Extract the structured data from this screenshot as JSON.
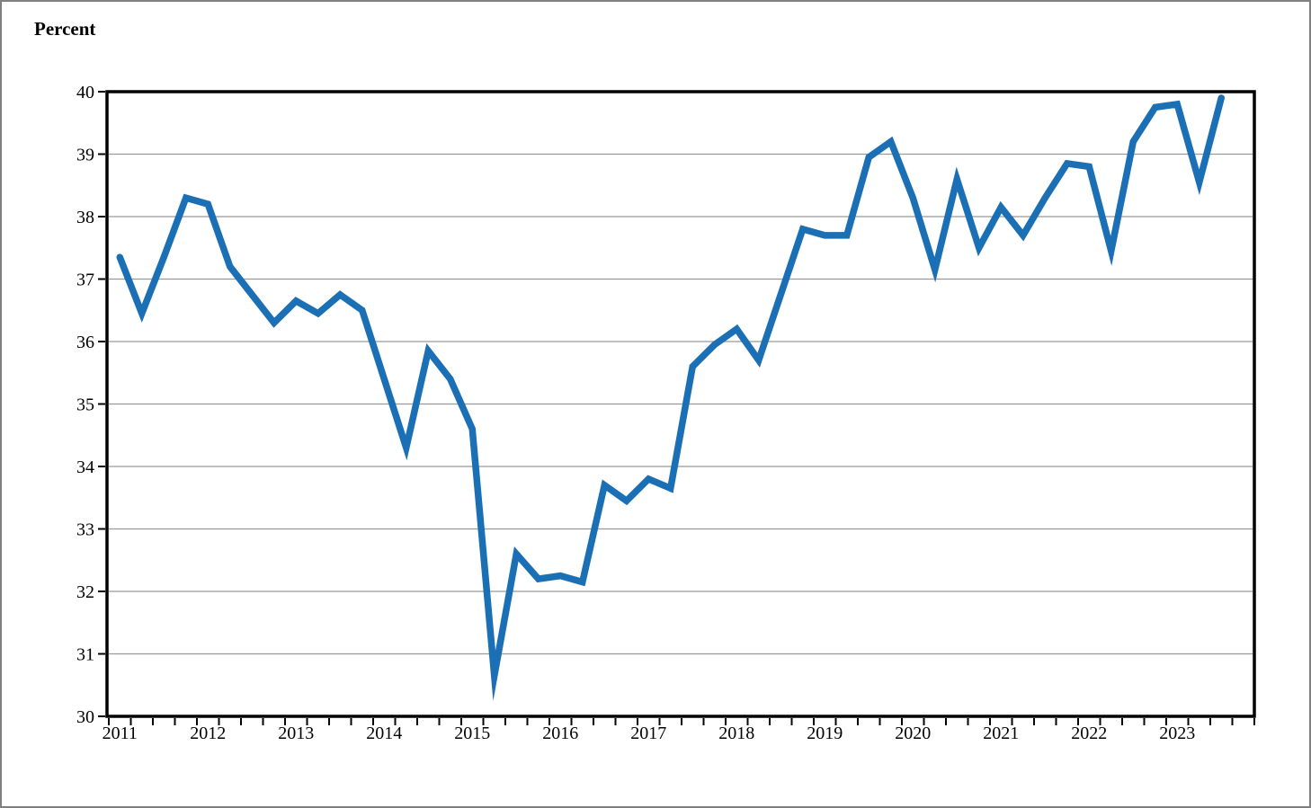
{
  "page": {
    "ylabel_header": "Percent"
  },
  "chart_data": {
    "type": "line",
    "title": "",
    "ylabel": "Percent",
    "xlabel": "",
    "x_frequency": "quarterly",
    "x_range": "2011 Q1 to 2023 Q3",
    "ylim": [
      30,
      40
    ],
    "grid": "horizontal gridlines at each integer value",
    "legend": "none",
    "line_color": "#1b6fb5",
    "frame_color": "#000000",
    "gridline_color": "#999999",
    "y_tick_labels": [
      "30",
      "31",
      "32",
      "33",
      "34",
      "35",
      "36",
      "37",
      "38",
      "39",
      "40"
    ],
    "x_tick_labels": [
      "2011",
      "2012",
      "2013",
      "2014",
      "2015",
      "2016",
      "2017",
      "2018",
      "2019",
      "2020",
      "2021",
      "2022",
      "2023"
    ],
    "series": [
      {
        "name": "Percent",
        "x": [
          "2011 Q1",
          "2011 Q2",
          "2011 Q3",
          "2011 Q4",
          "2012 Q1",
          "2012 Q2",
          "2012 Q3",
          "2012 Q4",
          "2013 Q1",
          "2013 Q2",
          "2013 Q3",
          "2013 Q4",
          "2014 Q1",
          "2014 Q2",
          "2014 Q3",
          "2014 Q4",
          "2015 Q1",
          "2015 Q2",
          "2015 Q3",
          "2015 Q4",
          "2016 Q1",
          "2016 Q2",
          "2016 Q3",
          "2016 Q4",
          "2017 Q1",
          "2017 Q2",
          "2017 Q3",
          "2017 Q4",
          "2018 Q1",
          "2018 Q2",
          "2018 Q3",
          "2018 Q4",
          "2019 Q1",
          "2019 Q2",
          "2019 Q3",
          "2019 Q4",
          "2020 Q1",
          "2020 Q2",
          "2020 Q3",
          "2020 Q4",
          "2021 Q1",
          "2021 Q2",
          "2021 Q3",
          "2021 Q4",
          "2022 Q1",
          "2022 Q2",
          "2022 Q3",
          "2022 Q4",
          "2023 Q1",
          "2023 Q2",
          "2023 Q3"
        ],
        "values": [
          37.35,
          36.45,
          37.35,
          38.3,
          38.2,
          37.2,
          36.75,
          36.3,
          36.65,
          36.45,
          36.75,
          36.5,
          35.4,
          34.3,
          35.85,
          35.4,
          34.6,
          30.65,
          32.6,
          32.2,
          32.25,
          32.15,
          33.7,
          33.45,
          33.8,
          33.65,
          35.6,
          35.95,
          36.2,
          35.7,
          36.75,
          37.8,
          37.7,
          37.7,
          38.95,
          39.2,
          38.3,
          37.15,
          38.6,
          37.5,
          38.15,
          37.7,
          38.3,
          38.85,
          38.8,
          37.45,
          39.2,
          39.75,
          39.8,
          38.55,
          39.9
        ]
      }
    ]
  }
}
